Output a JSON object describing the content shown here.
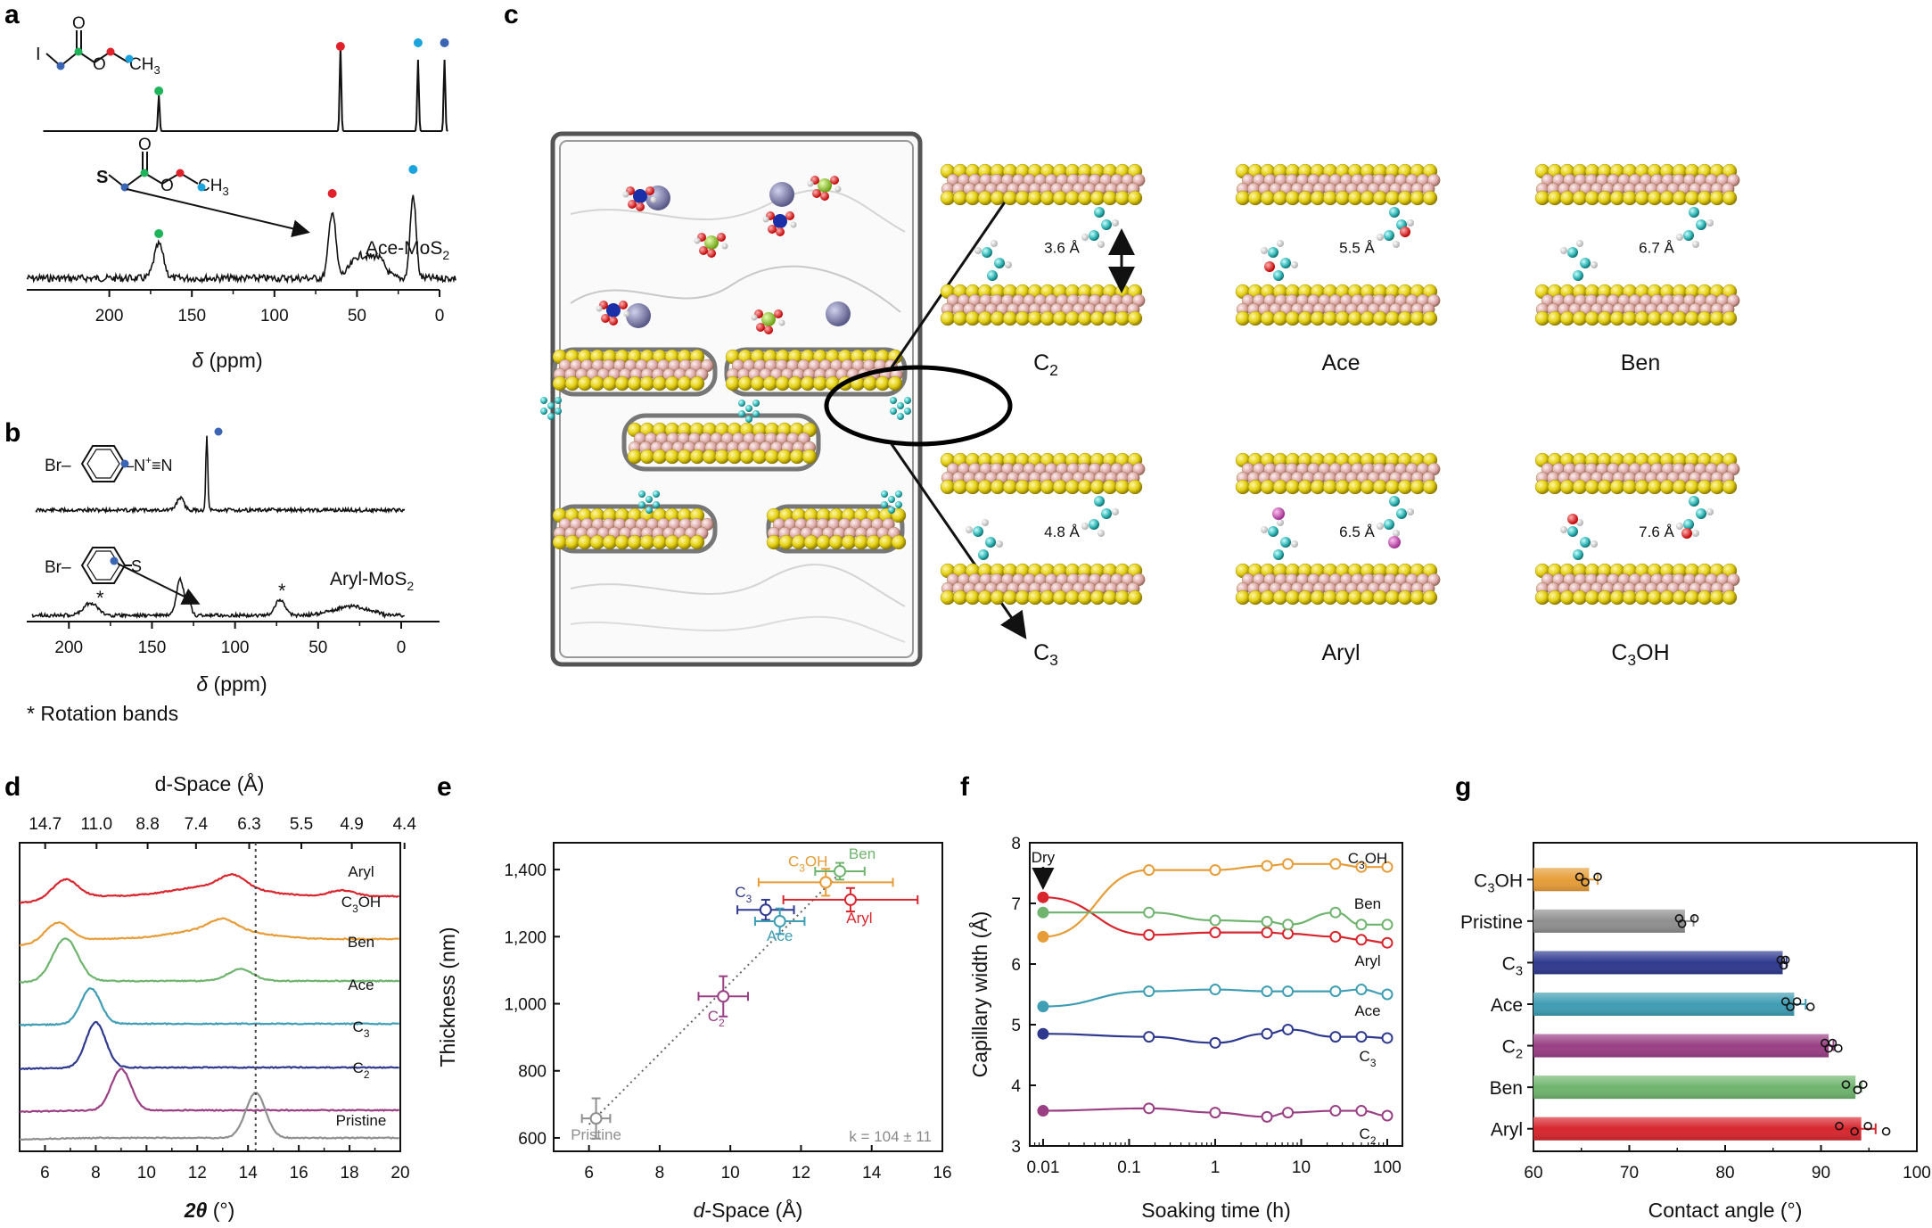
{
  "panels": {
    "a": "a",
    "b": "b",
    "c": "c",
    "d": "d",
    "e": "e",
    "f": "f",
    "g": "g"
  },
  "colors": {
    "C2": "#9a3f84",
    "C3": "#2f3a8f",
    "Ace": "#3f9db4",
    "Ben": "#6fb46e",
    "C3OH": "#e69d38",
    "Aryl": "#d8262e",
    "Pristine": "#8f8f8f",
    "nmr_green": "#1fb35a",
    "nmr_red": "#e0202a",
    "nmr_cyan": "#1aa3dd",
    "nmr_blue": "#3a64b4"
  },
  "panel_a": {
    "molecule_ref": {
      "atom_I": "I",
      "atom_O1": "O",
      "atom_O2": "O",
      "ch": "CH",
      "sub": "3"
    },
    "molecule_ace": {
      "atom_S": "S",
      "atom_O1": "O",
      "atom_O2": "O",
      "ch": "CH",
      "sub": "3"
    },
    "sample_label": "Ace-MoS",
    "sample_sub": "2",
    "x_ticks": [
      "200",
      "150",
      "100",
      "50",
      "0"
    ],
    "xlabel_sym": "δ",
    "xlabel_unit": " (ppm)"
  },
  "panel_b": {
    "molecule_ref": {
      "br": "Br–",
      "n": "–N",
      "np": "+",
      "nn": "≡N"
    },
    "molecule_aryl": {
      "br": "Br–",
      "s": "S"
    },
    "sample_label": "Aryl-MoS",
    "sample_sub": "2",
    "star": "*",
    "x_ticks": [
      "200",
      "150",
      "100",
      "50",
      "0"
    ],
    "xlabel_sym": "δ",
    "xlabel_unit": " (ppm)",
    "footnote": "* Rotation bands"
  },
  "panel_c": {
    "labels": [
      {
        "main": "C",
        "sub": "2",
        "tail": ""
      },
      {
        "main": "Ace",
        "sub": "",
        "tail": ""
      },
      {
        "main": "Ben",
        "sub": "",
        "tail": ""
      },
      {
        "main": "C",
        "sub": "3",
        "tail": ""
      },
      {
        "main": "Aryl",
        "sub": "",
        "tail": ""
      },
      {
        "main": "C",
        "sub": "3",
        "tail": "OH"
      }
    ],
    "distances": [
      "3.6 Å",
      "5.5 Å",
      "6.7 Å",
      "4.8 Å",
      "6.5 Å",
      "7.6 Å"
    ]
  },
  "chart_data": [
    {
      "panel": "d",
      "type": "line",
      "xlabel_sym": "2θ",
      "xlabel_unit": " (°)",
      "top_axis_label": "d-Space (Å)",
      "x_ticks": [
        "6",
        "8",
        "10",
        "12",
        "14",
        "16",
        "18",
        "20"
      ],
      "top_ticks": [
        "14.7",
        "11.0",
        "8.8",
        "7.4",
        "6.3",
        "5.5",
        "4.9",
        "4.4"
      ],
      "reference_line_2theta": 14.3,
      "xlim": [
        5,
        20
      ],
      "series": [
        {
          "name": "Aryl",
          "peaks": [
            [
              6.8,
              1.0
            ],
            [
              13.4,
              0.6
            ],
            [
              17.7,
              0.3
            ]
          ]
        },
        {
          "name": "C3OH",
          "name_main": "C",
          "name_sub": "3",
          "name_tail": "OH",
          "peaks": [
            [
              6.5,
              1.0
            ],
            [
              13.0,
              0.5
            ]
          ]
        },
        {
          "name": "Ben",
          "peaks": [
            [
              6.8,
              2.2
            ],
            [
              13.7,
              0.6
            ]
          ]
        },
        {
          "name": "Ace",
          "peaks": [
            [
              7.8,
              1.8
            ]
          ]
        },
        {
          "name": "C3",
          "name_main": "C",
          "name_sub": "3",
          "peaks": [
            [
              8.0,
              2.3
            ]
          ]
        },
        {
          "name": "C2",
          "name_main": "C",
          "name_sub": "2",
          "peaks": [
            [
              9.0,
              2.1
            ]
          ]
        },
        {
          "name": "Pristine",
          "peaks": [
            [
              14.3,
              2.3
            ]
          ]
        }
      ]
    },
    {
      "panel": "e",
      "type": "scatter",
      "xlabel": "d-Space (Å)",
      "xlabel_sym": "d",
      "xlabel_rest": "-Space (Å)",
      "ylabel": "Thickness (nm)",
      "xlim": [
        5,
        16
      ],
      "ylim": [
        560,
        1480
      ],
      "x_ticks": [
        "6",
        "8",
        "10",
        "12",
        "14",
        "16"
      ],
      "y_ticks": [
        "600",
        "800",
        "1,000",
        "1,200",
        "1,400"
      ],
      "fit_annotation": "k = 104 ± 11",
      "points": [
        {
          "name": "Pristine",
          "x": 6.2,
          "y": 658,
          "xerr": 0.4,
          "yerr": 60
        },
        {
          "name": "C2",
          "name_main": "C",
          "name_sub": "2",
          "x": 9.8,
          "y": 1022,
          "xerr": 0.7,
          "yerr": 60
        },
        {
          "name": "C3",
          "name_main": "C",
          "name_sub": "3",
          "x": 11.0,
          "y": 1280,
          "xerr": 0.8,
          "yerr": 30
        },
        {
          "name": "Ace",
          "x": 11.4,
          "y": 1246,
          "xerr": 0.7,
          "yerr": 38
        },
        {
          "name": "C3OH",
          "name_main": "C",
          "name_sub": "3",
          "name_tail": "OH",
          "x": 12.7,
          "y": 1362,
          "xerr": 1.9,
          "yerr": 40
        },
        {
          "name": "Ben",
          "x": 13.1,
          "y": 1395,
          "xerr": 0.7,
          "yerr": 25
        },
        {
          "name": "Aryl",
          "x": 13.4,
          "y": 1310,
          "xerr": 1.9,
          "yerr": 35
        }
      ],
      "fit_line": {
        "x": [
          6.0,
          13.2
        ],
        "y": [
          640,
          1400
        ]
      }
    },
    {
      "panel": "f",
      "type": "line",
      "xlabel": "Soaking time (h)",
      "ylabel": "Capillary width (Å)",
      "x_scale": "log",
      "xlim": [
        0.007,
        150
      ],
      "ylim": [
        3,
        8
      ],
      "x_ticks": [
        "0.01",
        "0.1",
        "1",
        "10",
        "100"
      ],
      "y_ticks": [
        "3",
        "4",
        "5",
        "6",
        "7",
        "8"
      ],
      "dry_annotation": "Dry",
      "x": [
        0.01,
        0.17,
        1,
        4,
        7,
        25,
        50,
        100
      ],
      "series": [
        {
          "name": "C3OH",
          "name_main": "C",
          "name_sub": "3",
          "name_tail": "OH",
          "values": [
            6.45,
            7.55,
            7.55,
            7.62,
            7.65,
            7.65,
            7.6,
            7.6
          ]
        },
        {
          "name": "Aryl",
          "values": [
            7.1,
            6.48,
            6.52,
            6.52,
            6.5,
            6.45,
            6.4,
            6.35
          ]
        },
        {
          "name": "Ben",
          "values": [
            6.85,
            6.85,
            6.72,
            6.7,
            6.65,
            6.85,
            6.65,
            6.65
          ]
        },
        {
          "name": "Ace",
          "values": [
            5.3,
            5.55,
            5.58,
            5.55,
            5.55,
            5.55,
            5.58,
            5.5
          ]
        },
        {
          "name": "C3",
          "name_main": "C",
          "name_sub": "3",
          "values": [
            4.85,
            4.8,
            4.7,
            4.85,
            4.92,
            4.8,
            4.8,
            4.78
          ]
        },
        {
          "name": "C2",
          "name_main": "C",
          "name_sub": "2",
          "values": [
            3.58,
            3.62,
            3.55,
            3.48,
            3.55,
            3.58,
            3.58,
            3.5
          ]
        }
      ]
    },
    {
      "panel": "g",
      "type": "bar",
      "orientation": "horizontal",
      "xlabel": "Contact angle (°)",
      "xlim": [
        60,
        100
      ],
      "x_ticks": [
        "60",
        "70",
        "80",
        "90",
        "100"
      ],
      "categories": [
        {
          "name": "C3OH",
          "main": "C",
          "sub": "3",
          "tail": "OH"
        },
        {
          "name": "Pristine",
          "main": "Pristine",
          "sub": "",
          "tail": ""
        },
        {
          "name": "C3",
          "main": "C",
          "sub": "3",
          "tail": ""
        },
        {
          "name": "Ace",
          "main": "Ace",
          "sub": "",
          "tail": ""
        },
        {
          "name": "C2",
          "main": "C",
          "sub": "2",
          "tail": ""
        },
        {
          "name": "Ben",
          "main": "Ben",
          "sub": "",
          "tail": ""
        },
        {
          "name": "Aryl",
          "main": "Aryl",
          "sub": "",
          "tail": ""
        }
      ],
      "values": [
        65.8,
        75.8,
        86.0,
        87.2,
        90.8,
        93.6,
        94.2
      ],
      "errors": [
        0.9,
        0.9,
        0.4,
        1.2,
        0.5,
        0.6,
        1.5
      ],
      "replicates": [
        [
          64.8,
          65.4,
          66.7
        ],
        [
          75.2,
          75.5,
          76.8
        ],
        [
          85.8,
          86.1,
          86.3
        ],
        [
          86.3,
          86.8,
          87.5,
          88.9
        ],
        [
          90.4,
          90.8,
          91.2,
          91.8
        ],
        [
          92.6,
          93.8,
          94.4
        ],
        [
          91.9,
          93.5,
          94.9,
          96.8
        ]
      ]
    }
  ]
}
